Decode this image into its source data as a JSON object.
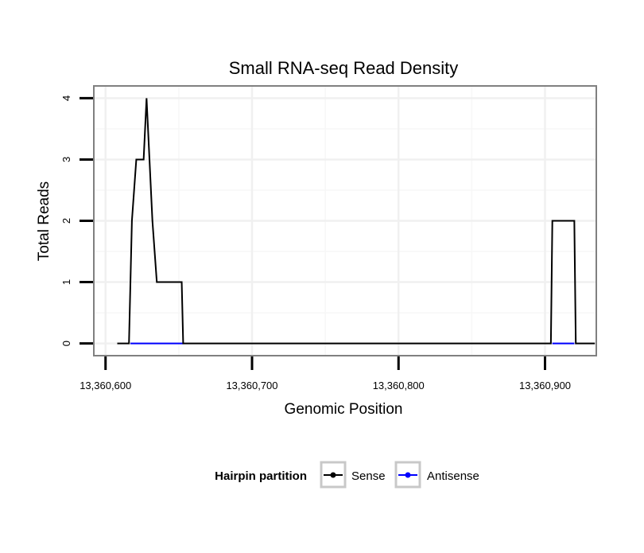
{
  "chart_data": {
    "type": "line",
    "title": "Small RNA-seq Read Density",
    "xlabel": "Genomic Position",
    "ylabel": "Total Reads",
    "xlim": [
      13360592,
      13360935
    ],
    "ylim": [
      -0.2,
      4.2
    ],
    "x_ticks": [
      13360600,
      13360700,
      13360800,
      13360900
    ],
    "x_tick_labels": [
      "13,360,600",
      "13,360,700",
      "13,360,800",
      "13,360,900"
    ],
    "y_ticks": [
      0,
      1,
      2,
      3,
      4
    ],
    "y_tick_labels": [
      "0",
      "1",
      "2",
      "3",
      "4"
    ],
    "grid": true,
    "legend": {
      "title": "Hairpin partition",
      "position": "bottom",
      "entries": [
        "Sense",
        "Antisense"
      ]
    },
    "series": [
      {
        "name": "Sense",
        "color": "#000000",
        "x": [
          13360608,
          13360616,
          13360617,
          13360617,
          13360618,
          13360618,
          13360621,
          13360621,
          13360626,
          13360626,
          13360628,
          13360628,
          13360632,
          13360632,
          13360635,
          13360635,
          13360652,
          13360653,
          13360904,
          13360905,
          13360920,
          13360921,
          13360934
        ],
        "values": [
          0,
          0,
          1,
          1,
          2,
          2,
          3,
          3,
          3,
          3,
          4,
          4,
          2,
          2,
          1,
          1,
          1,
          0,
          0,
          2,
          2,
          0,
          0
        ]
      },
      {
        "name": "Antisense",
        "color": "#0000ff",
        "x": [
          13360617,
          13360653,
          13360905,
          13360920
        ],
        "values": [
          0,
          0,
          0,
          0
        ],
        "segments": [
          [
            0,
            1
          ],
          [
            2,
            3
          ]
        ]
      }
    ]
  }
}
